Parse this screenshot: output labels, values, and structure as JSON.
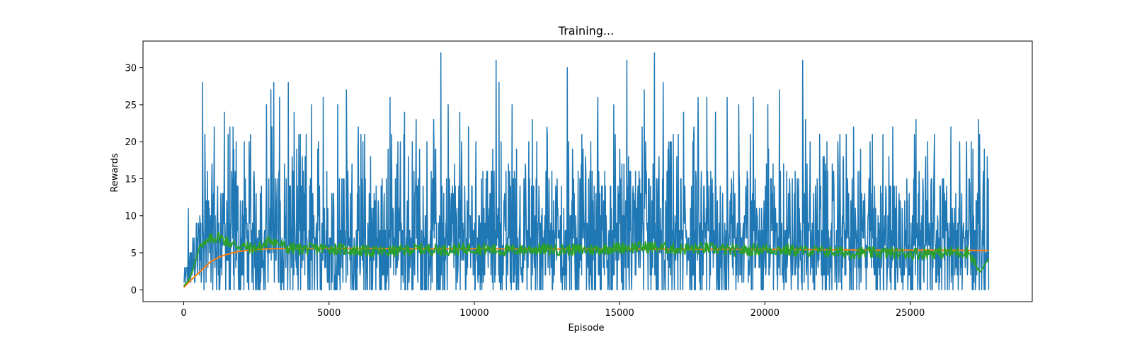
{
  "chart_data": {
    "type": "line",
    "title": "Training...",
    "xlabel": "Episode",
    "ylabel": "Rewards",
    "xlim": [
      -1400,
      29200
    ],
    "ylim": [
      -1.6,
      33.6
    ],
    "grid": false,
    "x_ticks": [
      0,
      5000,
      10000,
      15000,
      20000,
      25000
    ],
    "x_tick_labels": [
      "0",
      "5000",
      "10000",
      "15000",
      "20000",
      "25000"
    ],
    "y_ticks": [
      0,
      5,
      10,
      15,
      20,
      25,
      30
    ],
    "y_tick_labels": [
      "0",
      "5",
      "10",
      "15",
      "20",
      "25",
      "30"
    ],
    "n_episodes": 27700,
    "series": [
      {
        "color": "#1f77b4",
        "kind": "raw episode reward",
        "range_min": 0,
        "range_max": 32,
        "spikes": [
          [
            160,
            11
          ],
          [
            650,
            28
          ],
          [
            730,
            21
          ],
          [
            1050,
            22
          ],
          [
            1400,
            24
          ],
          [
            1700,
            22
          ],
          [
            2300,
            21
          ],
          [
            2850,
            25
          ],
          [
            3000,
            27
          ],
          [
            3100,
            28
          ],
          [
            3300,
            26
          ],
          [
            3600,
            28
          ],
          [
            3800,
            24
          ],
          [
            4400,
            25
          ],
          [
            4800,
            26
          ],
          [
            5300,
            25
          ],
          [
            5600,
            27
          ],
          [
            6100,
            21
          ],
          [
            7100,
            26
          ],
          [
            7600,
            24
          ],
          [
            8000,
            23
          ],
          [
            8600,
            23
          ],
          [
            8850,
            32
          ],
          [
            9100,
            25
          ],
          [
            9500,
            24
          ],
          [
            9800,
            22
          ],
          [
            10750,
            31
          ],
          [
            10850,
            28
          ],
          [
            11300,
            25
          ],
          [
            12000,
            23
          ],
          [
            12500,
            22
          ],
          [
            13200,
            30
          ],
          [
            13700,
            21
          ],
          [
            14250,
            26
          ],
          [
            14800,
            25
          ],
          [
            15250,
            31
          ],
          [
            15850,
            27
          ],
          [
            16200,
            32
          ],
          [
            16500,
            28
          ],
          [
            17200,
            24
          ],
          [
            17700,
            26
          ],
          [
            18000,
            26
          ],
          [
            18300,
            24
          ],
          [
            18700,
            26
          ],
          [
            19100,
            25
          ],
          [
            19600,
            26
          ],
          [
            20100,
            25
          ],
          [
            20500,
            27
          ],
          [
            21300,
            31
          ],
          [
            21400,
            23
          ],
          [
            22000,
            18
          ],
          [
            22800,
            21
          ],
          [
            23700,
            21
          ],
          [
            24400,
            22
          ],
          [
            25200,
            23
          ],
          [
            25600,
            20
          ],
          [
            26400,
            22
          ],
          [
            26700,
            20
          ],
          [
            27100,
            20
          ],
          [
            27350,
            23
          ],
          [
            27550,
            19
          ],
          [
            27650,
            18
          ]
        ]
      },
      {
        "color": "#ff7f0e",
        "kind": "cumulative mean reward",
        "points": [
          [
            0,
            0.3
          ],
          [
            300,
            1.5
          ],
          [
            600,
            2.6
          ],
          [
            900,
            3.7
          ],
          [
            1200,
            4.4
          ],
          [
            1500,
            4.8
          ],
          [
            1800,
            5.1
          ],
          [
            2100,
            5.3
          ],
          [
            2500,
            5.45
          ],
          [
            3000,
            5.55
          ],
          [
            4000,
            5.6
          ],
          [
            5000,
            5.6
          ],
          [
            6000,
            5.6
          ],
          [
            8000,
            5.55
          ],
          [
            10000,
            5.55
          ],
          [
            12000,
            5.5
          ],
          [
            14000,
            5.5
          ],
          [
            16000,
            5.5
          ],
          [
            18000,
            5.45
          ],
          [
            20000,
            5.45
          ],
          [
            22000,
            5.4
          ],
          [
            24000,
            5.35
          ],
          [
            26000,
            5.35
          ],
          [
            27700,
            5.3
          ]
        ]
      },
      {
        "color": "#2ca02c",
        "kind": "moving average reward",
        "points": [
          [
            0,
            0.5
          ],
          [
            150,
            1.2
          ],
          [
            300,
            2.5
          ],
          [
            450,
            4.5
          ],
          [
            600,
            6.5
          ],
          [
            750,
            6.0
          ],
          [
            900,
            6.8
          ],
          [
            1200,
            7.2
          ],
          [
            1500,
            6.5
          ],
          [
            1800,
            6.0
          ],
          [
            2100,
            5.8
          ],
          [
            2400,
            5.6
          ],
          [
            2700,
            5.9
          ],
          [
            3000,
            6.8
          ],
          [
            3300,
            6.2
          ],
          [
            3600,
            5.6
          ],
          [
            4000,
            5.5
          ],
          [
            5000,
            5.6
          ],
          [
            6000,
            5.3
          ],
          [
            7000,
            5.1
          ],
          [
            8000,
            5.5
          ],
          [
            9000,
            5.4
          ],
          [
            10000,
            5.6
          ],
          [
            11000,
            5.3
          ],
          [
            12000,
            5.5
          ],
          [
            13000,
            5.4
          ],
          [
            14000,
            5.4
          ],
          [
            15000,
            5.7
          ],
          [
            16000,
            5.8
          ],
          [
            17000,
            5.5
          ],
          [
            18000,
            5.6
          ],
          [
            19000,
            5.3
          ],
          [
            20000,
            5.5
          ],
          [
            21000,
            5.3
          ],
          [
            22000,
            5.2
          ],
          [
            23000,
            5.0
          ],
          [
            24000,
            5.0
          ],
          [
            25000,
            4.9
          ],
          [
            26000,
            5.0
          ],
          [
            27000,
            5.1
          ],
          [
            27400,
            2.4
          ],
          [
            27700,
            4.2
          ]
        ]
      }
    ]
  }
}
